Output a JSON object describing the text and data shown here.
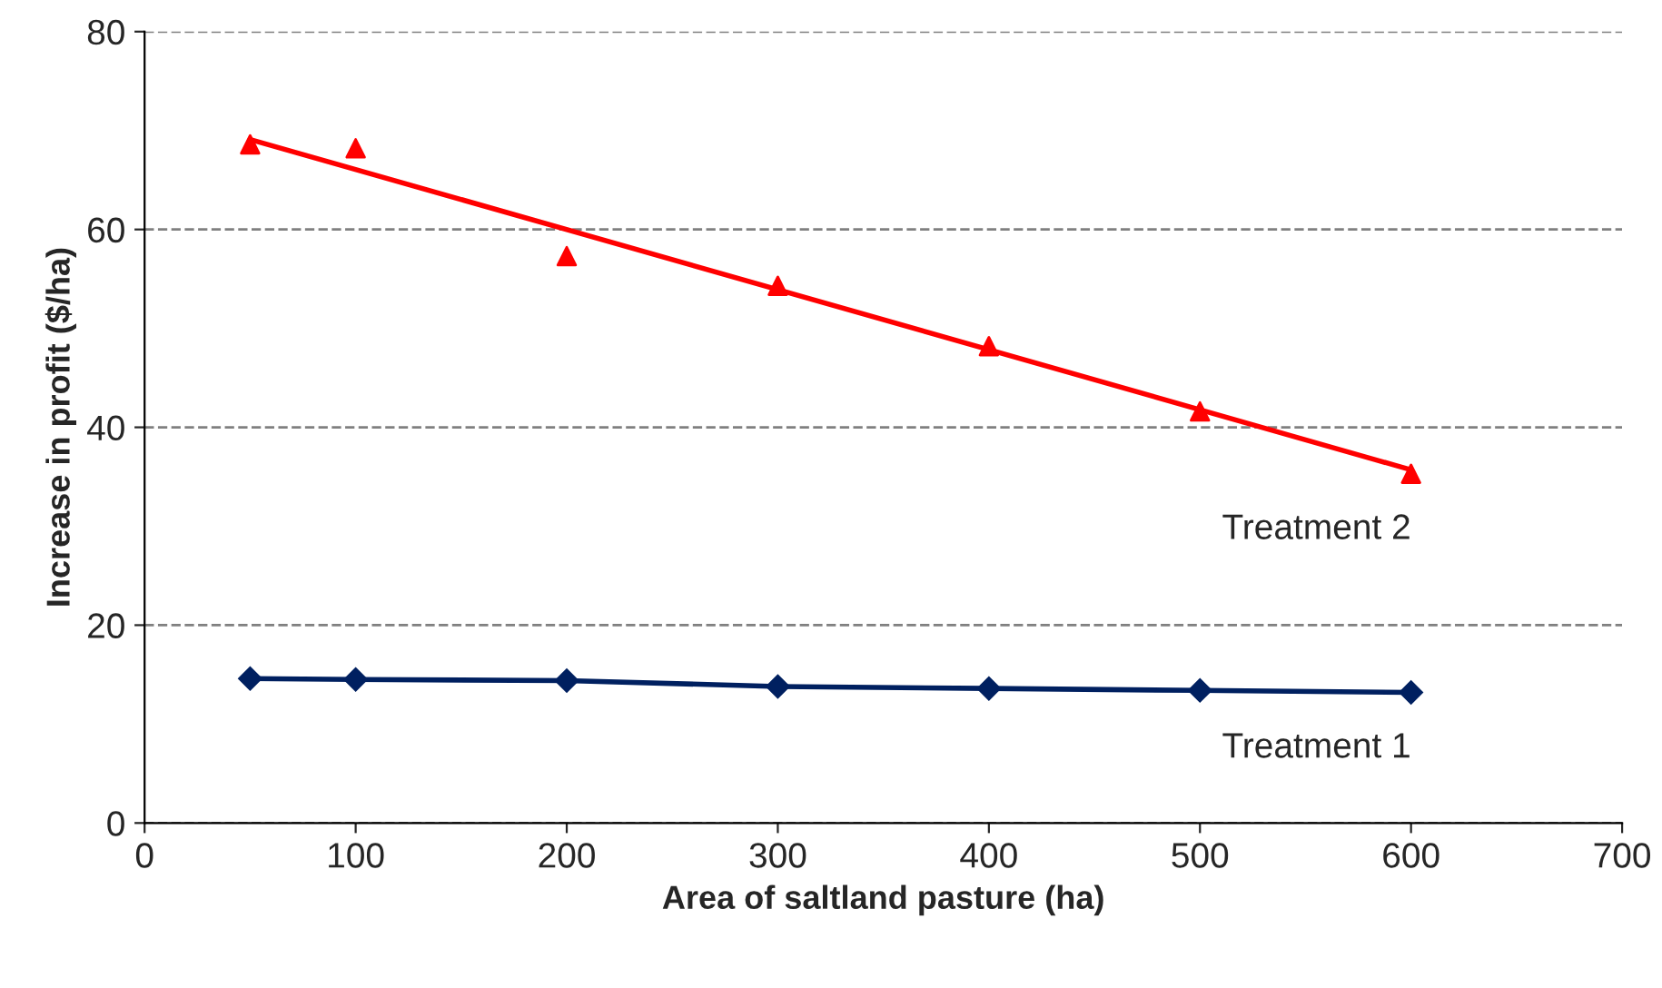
{
  "chart_data": {
    "type": "line",
    "xlabel": "Area of saltland pasture (ha)",
    "ylabel": "Increase in profit ($/ha)",
    "x": [
      50,
      100,
      200,
      300,
      400,
      500,
      600
    ],
    "series": [
      {
        "name": "Treatment 1",
        "color": "#002060",
        "marker": "diamond",
        "line_style": "solid",
        "values": [
          14.6,
          14.5,
          14.4,
          13.8,
          13.6,
          13.4,
          13.2
        ]
      },
      {
        "name": "Treatment 2",
        "type": "scatter",
        "color": "#ff0000",
        "marker": "triangle",
        "values": [
          68.6,
          68.2,
          57.3,
          54.3,
          48.2,
          41.6,
          35.3
        ]
      },
      {
        "type": "line",
        "color": "#ff0000",
        "marker": "none",
        "line_style": "solid",
        "x": [
          50,
          600
        ],
        "values": [
          69.1,
          35.7
        ]
      }
    ],
    "xlim": [
      0,
      700
    ],
    "xticks": [
      0,
      100,
      200,
      300,
      400,
      500,
      600,
      700
    ],
    "ylim": [
      0,
      80
    ],
    "yticks": [
      0,
      20,
      40,
      60,
      80
    ],
    "grid": "y",
    "legend": false
  }
}
